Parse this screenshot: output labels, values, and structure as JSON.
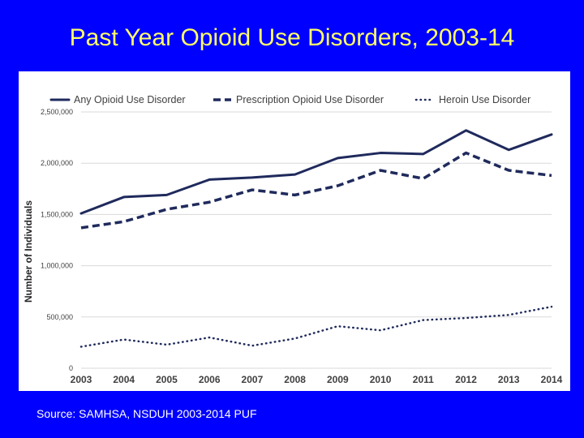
{
  "slide": {
    "title": "Past Year Opioid Use Disorders, 2003-14",
    "source": "Source: SAMHSA, NSDUH 2003-2014 PUF"
  },
  "colors": {
    "background": "#0000ff",
    "title": "#ffff66",
    "series": "#1f2a5c",
    "grid": "#d9d9d9"
  },
  "chart_data": {
    "type": "line",
    "title": "",
    "xlabel": "",
    "ylabel": "Number of Individuals",
    "ylim": [
      0,
      2500000
    ],
    "yticks": [
      0,
      500000,
      1000000,
      1500000,
      2000000,
      2500000
    ],
    "ytick_labels": [
      "0",
      "500,000",
      "1,000,000",
      "1,500,000",
      "2,000,000",
      "2,500,000"
    ],
    "categories": [
      "2003",
      "2004",
      "2005",
      "2006",
      "2007",
      "2008",
      "2009",
      "2010",
      "2011",
      "2012",
      "2013",
      "2014"
    ],
    "grid": true,
    "legend_position": "top",
    "series": [
      {
        "name": "Any Opioid Use Disorder",
        "style": "solid",
        "values": [
          1510000,
          1670000,
          1690000,
          1840000,
          1860000,
          1890000,
          2050000,
          2100000,
          2090000,
          2320000,
          2130000,
          2280000
        ]
      },
      {
        "name": "Prescription Opioid Use Disorder",
        "style": "dashed",
        "values": [
          1370000,
          1430000,
          1550000,
          1620000,
          1740000,
          1690000,
          1780000,
          1930000,
          1850000,
          2100000,
          1930000,
          1880000
        ]
      },
      {
        "name": "Heroin Use Disorder",
        "style": "dotted",
        "values": [
          210000,
          280000,
          230000,
          300000,
          220000,
          290000,
          410000,
          370000,
          470000,
          490000,
          520000,
          600000
        ]
      }
    ]
  }
}
